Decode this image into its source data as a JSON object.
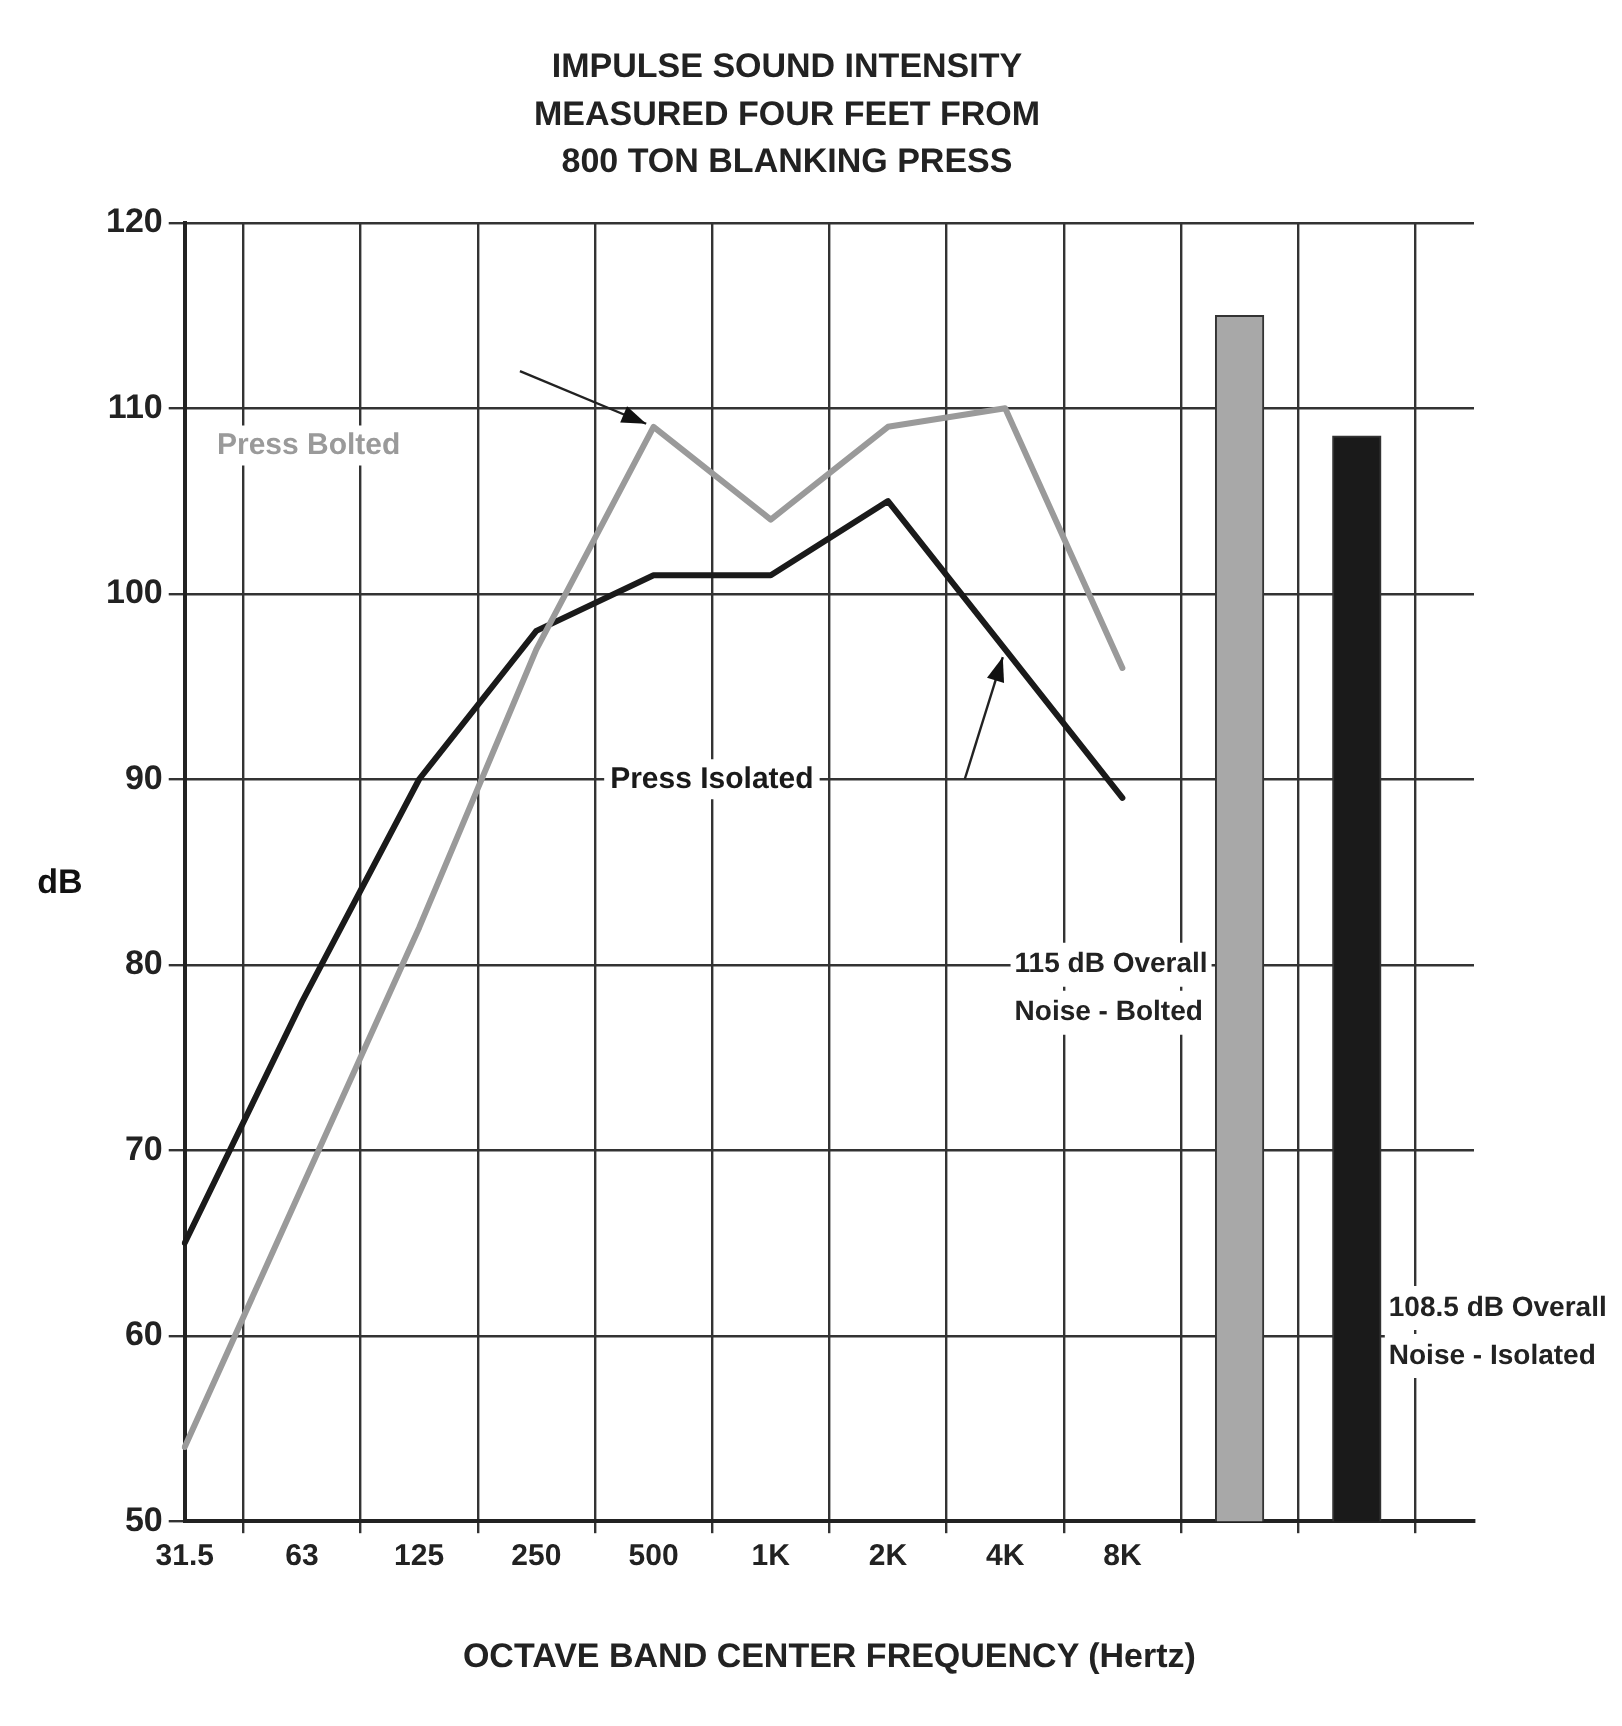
{
  "chart_data": {
    "type": "line",
    "title": "IMPULSE SOUND INTENSITY\nMEASURED FOUR FEET FROM\n800 TON BLANKING PRESS",
    "xlabel": "OCTAVE BAND CENTER FREQUENCY (Hertz)",
    "ylabel": "dB",
    "categories": [
      "31.5",
      "63",
      "125",
      "250",
      "500",
      "1K",
      "2K",
      "4K",
      "8K",
      null,
      null,
      null
    ],
    "series": [
      {
        "name": "Press Bolted",
        "color": "#9a9a9a",
        "values": [
          54,
          68,
          82,
          97,
          109,
          104,
          109,
          110,
          96,
          null,
          null,
          null
        ]
      },
      {
        "name": "Press Isolated",
        "color": "#1a1a1a",
        "values": [
          65,
          78,
          90,
          98,
          101,
          101,
          105,
          97,
          89,
          null,
          null,
          null
        ]
      },
      {
        "type": "bar",
        "color": "#a8a8a8",
        "values": [
          null,
          null,
          null,
          null,
          null,
          null,
          null,
          null,
          null,
          115,
          null,
          null
        ]
      },
      {
        "type": "bar",
        "color": "#1a1a1a",
        "values": [
          null,
          null,
          null,
          null,
          null,
          null,
          null,
          null,
          null,
          null,
          108.5,
          null
        ]
      }
    ],
    "annotations": [
      "115 dB Overall\nNoise - Bolted",
      "108.5 dB Overall\nNoise - Isolated"
    ],
    "ylim": [
      50,
      120
    ],
    "yticks": [
      50,
      60,
      70,
      80,
      90,
      100,
      110,
      120
    ],
    "grid": true,
    "marker": "none",
    "line_style": "solid"
  }
}
